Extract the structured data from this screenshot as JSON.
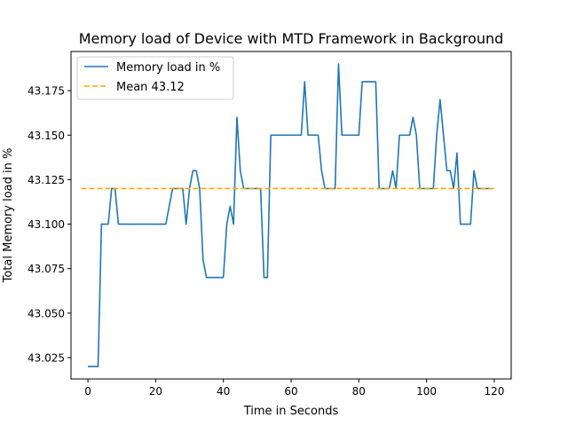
{
  "chart_data": {
    "type": "line",
    "title": "Memory load of Device with MTD Framework in Background",
    "xlabel": "Time in Seconds",
    "ylabel": "Total Memory load in %",
    "xlim": [
      -5,
      125
    ],
    "ylim": [
      43.013,
      43.197
    ],
    "x_ticks": [
      0,
      20,
      40,
      60,
      80,
      100,
      120
    ],
    "y_ticks": [
      43.025,
      43.05,
      43.075,
      43.1,
      43.125,
      43.15,
      43.175
    ],
    "x_tick_labels": [
      "0",
      "20",
      "40",
      "60",
      "80",
      "100",
      "120"
    ],
    "y_tick_labels": [
      "43.025",
      "43.050",
      "43.075",
      "43.100",
      "43.125",
      "43.150",
      "43.175"
    ],
    "legend_position": "top-left",
    "grid": false,
    "series": [
      {
        "name": "Memory load in %",
        "color": "#1f77b4",
        "style": "solid",
        "x": [
          0,
          1,
          2,
          3,
          4,
          5,
          6,
          7,
          8,
          9,
          10,
          11,
          12,
          13,
          14,
          15,
          16,
          17,
          18,
          19,
          20,
          21,
          22,
          23,
          24,
          25,
          26,
          27,
          28,
          29,
          30,
          31,
          32,
          33,
          34,
          35,
          36,
          37,
          38,
          39,
          40,
          41,
          42,
          43,
          44,
          45,
          46,
          47,
          48,
          49,
          50,
          51,
          52,
          53,
          54,
          55,
          56,
          57,
          58,
          59,
          60,
          61,
          62,
          63,
          64,
          65,
          66,
          67,
          68,
          69,
          70,
          71,
          72,
          73,
          74,
          75,
          76,
          77,
          78,
          79,
          80,
          81,
          82,
          83,
          84,
          85,
          86,
          87,
          88,
          89,
          90,
          91,
          92,
          93,
          94,
          95,
          96,
          97,
          98,
          99,
          100,
          101,
          102,
          103,
          104,
          105,
          106,
          107,
          108,
          109,
          110,
          111,
          112,
          113,
          114,
          115,
          116,
          117,
          118,
          119
        ],
        "values": [
          43.02,
          43.02,
          43.02,
          43.02,
          43.1,
          43.1,
          43.1,
          43.12,
          43.12,
          43.1,
          43.1,
          43.1,
          43.1,
          43.1,
          43.1,
          43.1,
          43.1,
          43.1,
          43.1,
          43.1,
          43.1,
          43.1,
          43.1,
          43.1,
          43.11,
          43.12,
          43.12,
          43.12,
          43.12,
          43.1,
          43.12,
          43.13,
          43.13,
          43.12,
          43.08,
          43.07,
          43.07,
          43.07,
          43.07,
          43.07,
          43.07,
          43.1,
          43.11,
          43.1,
          43.16,
          43.13,
          43.12,
          43.12,
          43.12,
          43.12,
          43.12,
          43.12,
          43.07,
          43.07,
          43.15,
          43.15,
          43.15,
          43.15,
          43.15,
          43.15,
          43.15,
          43.15,
          43.15,
          43.15,
          43.18,
          43.15,
          43.15,
          43.15,
          43.15,
          43.13,
          43.12,
          43.12,
          43.12,
          43.12,
          43.19,
          43.15,
          43.15,
          43.15,
          43.15,
          43.15,
          43.15,
          43.18,
          43.18,
          43.18,
          43.18,
          43.18,
          43.12,
          43.12,
          43.12,
          43.12,
          43.13,
          43.12,
          43.15,
          43.15,
          43.15,
          43.15,
          43.16,
          43.15,
          43.12,
          43.12,
          43.12,
          43.12,
          43.12,
          43.15,
          43.17,
          43.15,
          43.13,
          43.13,
          43.12,
          43.14,
          43.1,
          43.1,
          43.1,
          43.1,
          43.13,
          43.12,
          43.12,
          43.12,
          43.12,
          43.12
        ]
      },
      {
        "name": "Mean 43.12",
        "color": "#ffa500",
        "style": "dashed",
        "x": [
          -2,
          120
        ],
        "values": [
          43.12,
          43.12
        ]
      }
    ]
  }
}
